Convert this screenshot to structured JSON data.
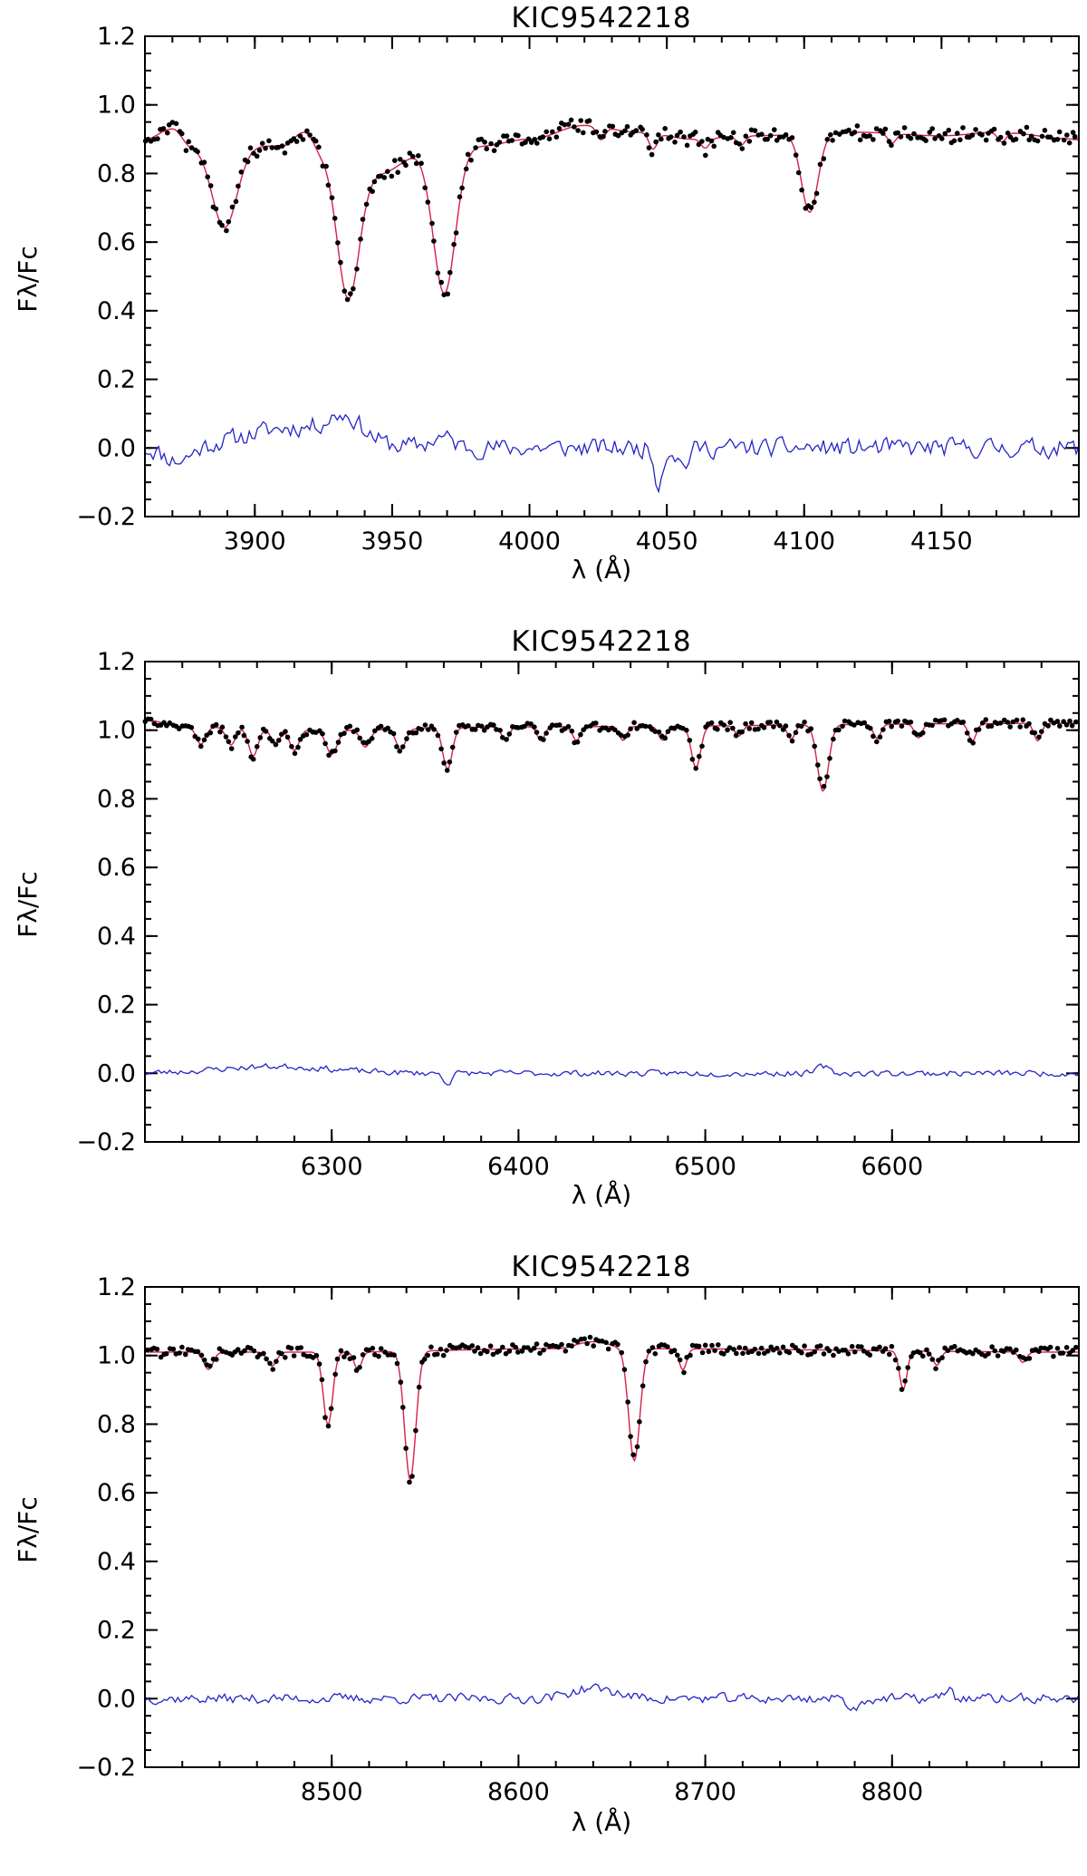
{
  "chart_data": [
    {
      "type": "line",
      "title": "KIC9542218",
      "xlabel": "λ (Å)",
      "ylabel": "Fλ/Fc",
      "xlim": [
        3860,
        4200
      ],
      "ylim": [
        -0.2,
        1.2
      ],
      "xticks": [
        3900,
        3950,
        4000,
        4050,
        4100,
        4150
      ],
      "xtick_labels": [
        "3900",
        "3950",
        "4000",
        "4050",
        "4100",
        "4150"
      ],
      "yticks": [
        -0.2,
        0.0,
        0.2,
        0.4,
        0.6,
        0.8,
        1.0,
        1.2
      ],
      "ytick_labels": [
        "−0.2",
        "0.0",
        "0.2",
        "0.4",
        "0.6",
        "0.8",
        "1.0",
        "1.2"
      ],
      "colors": {
        "observed": "#000000",
        "model": "#d81f46",
        "residual": "#2424c8"
      },
      "continuum": [
        [
          3860,
          0.9
        ],
        [
          3870,
          0.93
        ],
        [
          3877,
          0.88
        ],
        [
          3910,
          0.88
        ],
        [
          3918,
          0.92
        ],
        [
          3925,
          0.86
        ],
        [
          3945,
          0.8
        ],
        [
          3962,
          0.86
        ],
        [
          3982,
          0.88
        ],
        [
          4000,
          0.9
        ],
        [
          4020,
          0.94
        ],
        [
          4040,
          0.92
        ],
        [
          4060,
          0.9
        ],
        [
          4080,
          0.91
        ],
        [
          4120,
          0.92
        ],
        [
          4150,
          0.91
        ],
        [
          4170,
          0.92
        ],
        [
          4200,
          0.9
        ]
      ],
      "lines": [
        {
          "center": 3889,
          "depth": 0.27,
          "width": 4.5
        },
        {
          "center": 3934,
          "depth": 0.48,
          "width": 4.0
        },
        {
          "center": 3969,
          "depth": 0.48,
          "width": 4.0
        },
        {
          "center": 4102,
          "depth": 0.25,
          "width": 3.0
        },
        {
          "center": 4026,
          "depth": 0.04,
          "width": 1.5
        },
        {
          "center": 4045,
          "depth": 0.05,
          "width": 1.5
        },
        {
          "center": 4064,
          "depth": 0.03,
          "width": 1.5
        },
        {
          "center": 4077,
          "depth": 0.03,
          "width": 1.5
        },
        {
          "center": 4132,
          "depth": 0.03,
          "width": 1.5
        },
        {
          "center": 4172,
          "depth": 0.03,
          "width": 1.5
        }
      ],
      "noise": 0.022,
      "resid_bumps": [
        [
          3915,
          0.06,
          18
        ],
        [
          3933,
          0.06,
          6
        ],
        [
          3968,
          0.03,
          4
        ],
        [
          3872,
          -0.04,
          5
        ],
        [
          4047,
          -0.1,
          1.5
        ],
        [
          4056,
          -0.05,
          2
        ]
      ],
      "resid_noise": 0.025,
      "seed": 11
    },
    {
      "type": "line",
      "title": "KIC9542218",
      "xlabel": "λ (Å)",
      "ylabel": "Fλ/Fc",
      "xlim": [
        6200,
        6700
      ],
      "ylim": [
        -0.2,
        1.2
      ],
      "xticks": [
        6300,
        6400,
        6500,
        6600
      ],
      "xtick_labels": [
        "6300",
        "6400",
        "6500",
        "6600"
      ],
      "yticks": [
        -0.2,
        0.0,
        0.2,
        0.4,
        0.6,
        0.8,
        1.0,
        1.2
      ],
      "ytick_labels": [
        "−0.2",
        "0.0",
        "0.2",
        "0.4",
        "0.6",
        "0.8",
        "1.0",
        "1.2"
      ],
      "colors": {
        "observed": "#000000",
        "model": "#d81f46",
        "residual": "#2424c8"
      },
      "continuum": [
        [
          6200,
          1.03
        ],
        [
          6220,
          1.01
        ],
        [
          6300,
          1.0
        ],
        [
          6400,
          1.01
        ],
        [
          6700,
          1.02
        ]
      ],
      "lines": [
        {
          "center": 6230,
          "depth": 0.05,
          "width": 2.5
        },
        {
          "center": 6246,
          "depth": 0.05,
          "width": 2.5
        },
        {
          "center": 6258,
          "depth": 0.08,
          "width": 2.5
        },
        {
          "center": 6270,
          "depth": 0.04,
          "width": 2.5
        },
        {
          "center": 6280,
          "depth": 0.06,
          "width": 2.5
        },
        {
          "center": 6300,
          "depth": 0.07,
          "width": 3.0
        },
        {
          "center": 6318,
          "depth": 0.05,
          "width": 2.5
        },
        {
          "center": 6337,
          "depth": 0.06,
          "width": 2.5
        },
        {
          "center": 6362,
          "depth": 0.12,
          "width": 2.5
        },
        {
          "center": 6393,
          "depth": 0.04,
          "width": 2.0
        },
        {
          "center": 6412,
          "depth": 0.04,
          "width": 2.0
        },
        {
          "center": 6431,
          "depth": 0.04,
          "width": 2.0
        },
        {
          "center": 6456,
          "depth": 0.04,
          "width": 2.0
        },
        {
          "center": 6477,
          "depth": 0.04,
          "width": 2.0
        },
        {
          "center": 6495,
          "depth": 0.12,
          "width": 2.5
        },
        {
          "center": 6518,
          "depth": 0.03,
          "width": 2.0
        },
        {
          "center": 6546,
          "depth": 0.04,
          "width": 2.0
        },
        {
          "center": 6563,
          "depth": 0.19,
          "width": 3.0
        },
        {
          "center": 6592,
          "depth": 0.04,
          "width": 2.0
        },
        {
          "center": 6614,
          "depth": 0.04,
          "width": 2.0
        },
        {
          "center": 6643,
          "depth": 0.05,
          "width": 2.0
        },
        {
          "center": 6678,
          "depth": 0.05,
          "width": 2.0
        }
      ],
      "noise": 0.012,
      "resid_bumps": [
        [
          6270,
          0.02,
          30
        ],
        [
          6362,
          -0.03,
          2
        ],
        [
          6563,
          0.02,
          3
        ]
      ],
      "resid_noise": 0.008,
      "seed": 23
    },
    {
      "type": "line",
      "title": "KIC9542218",
      "xlabel": "λ (Å)",
      "ylabel": "Fλ/Fc",
      "xlim": [
        8400,
        8900
      ],
      "ylim": [
        -0.2,
        1.2
      ],
      "xticks": [
        8500,
        8600,
        8700,
        8800
      ],
      "xtick_labels": [
        "8500",
        "8600",
        "8700",
        "8800"
      ],
      "yticks": [
        -0.2,
        0.0,
        0.2,
        0.4,
        0.6,
        0.8,
        1.0,
        1.2
      ],
      "ytick_labels": [
        "−0.2",
        "0.0",
        "0.2",
        "0.4",
        "0.6",
        "0.8",
        "1.0",
        "1.2"
      ],
      "colors": {
        "observed": "#000000",
        "model": "#d81f46",
        "residual": "#2424c8"
      },
      "continuum": [
        [
          8400,
          1.01
        ],
        [
          8500,
          1.01
        ],
        [
          8620,
          1.02
        ],
        [
          8640,
          1.04
        ],
        [
          8660,
          1.02
        ],
        [
          8900,
          1.01
        ]
      ],
      "lines": [
        {
          "center": 8434,
          "depth": 0.05,
          "width": 2.5
        },
        {
          "center": 8468,
          "depth": 0.04,
          "width": 2.5
        },
        {
          "center": 8498,
          "depth": 0.21,
          "width": 2.5
        },
        {
          "center": 8514,
          "depth": 0.05,
          "width": 2.0
        },
        {
          "center": 8542,
          "depth": 0.37,
          "width": 3.0
        },
        {
          "center": 8662,
          "depth": 0.32,
          "width": 3.0
        },
        {
          "center": 8688,
          "depth": 0.06,
          "width": 2.0
        },
        {
          "center": 8806,
          "depth": 0.11,
          "width": 2.0
        },
        {
          "center": 8824,
          "depth": 0.04,
          "width": 2.0
        },
        {
          "center": 8870,
          "depth": 0.03,
          "width": 2.0
        }
      ],
      "noise": 0.015,
      "resid_bumps": [
        [
          8640,
          0.03,
          12
        ],
        [
          8780,
          -0.03,
          3
        ],
        [
          8830,
          0.03,
          2
        ]
      ],
      "resid_noise": 0.013,
      "seed": 37
    }
  ]
}
